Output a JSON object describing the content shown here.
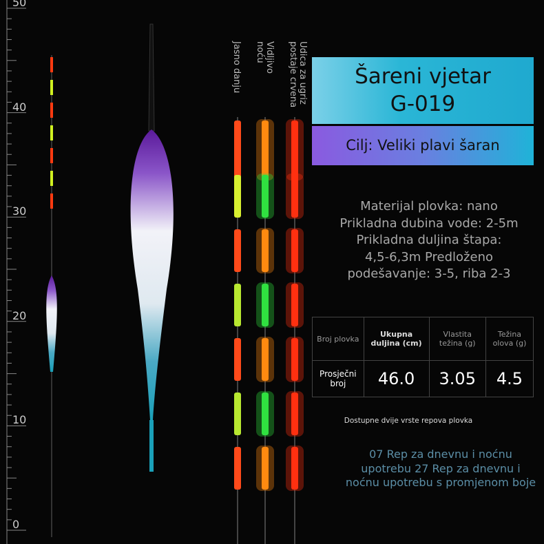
{
  "ruler": {
    "labels": [
      50,
      40,
      30,
      20,
      10,
      0
    ]
  },
  "tail_labels": [
    {
      "lines": [
        "Jasno danju"
      ]
    },
    {
      "lines": [
        "Vidljivo",
        "noću"
      ]
    },
    {
      "lines": [
        "Udica za ugriz",
        "postaje crvena"
      ]
    }
  ],
  "header": {
    "title_lines": [
      "Šareni vjetar",
      "G-019"
    ],
    "subtitle": "Cilj: Veliki plavi šaran"
  },
  "description": {
    "lines": [
      "Materijal plovka: nano",
      "Prikladna dubina vode: 2-5m",
      "Prikladna duljina štapa:",
      "4,5-6,3m Predloženo",
      "podešavanje: 3-5, riba 2-3"
    ]
  },
  "table": {
    "header": [
      "Broj plovka",
      "Ukupna duljina (cm)",
      "Vlastita težina (g)",
      "Težina olova (g)"
    ],
    "rows": [
      [
        "Prosječni broj",
        "46.0",
        "3.05",
        "4.5"
      ]
    ]
  },
  "notes": {
    "small": "Dostupne dvije vrste repova plovka",
    "lines": [
      "07 Rep za dnevnu i noćnu",
      "upotrebu 27 Rep za dnevnu i",
      "noćnu upotrebu s promjenom boje"
    ]
  }
}
